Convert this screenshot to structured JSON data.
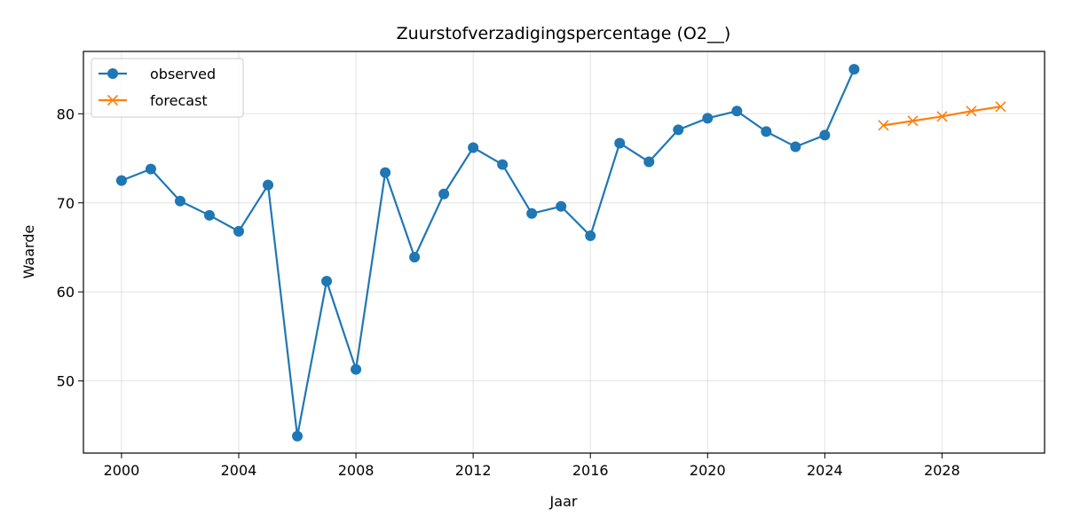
{
  "chart_data": {
    "type": "line",
    "title": "Zuurstofverzadigingspercentage (O2__)",
    "xlabel": "Jaar",
    "ylabel": "Waarde",
    "xlim": [
      1998.7,
      2031.5
    ],
    "ylim": [
      41.9,
      87.0
    ],
    "xticks": [
      2000,
      2004,
      2008,
      2012,
      2016,
      2020,
      2024,
      2028
    ],
    "yticks": [
      50,
      60,
      70,
      80
    ],
    "grid": true,
    "legend_position": "top-left",
    "series": [
      {
        "name": "observed",
        "color": "#1f77b4",
        "marker": "circle",
        "x": [
          2000,
          2001,
          2002,
          2003,
          2004,
          2005,
          2006,
          2007,
          2008,
          2009,
          2010,
          2011,
          2012,
          2013,
          2014,
          2015,
          2016,
          2017,
          2018,
          2019,
          2020,
          2021,
          2022,
          2023,
          2024,
          2025
        ],
        "values": [
          72.5,
          73.8,
          70.2,
          68.6,
          66.8,
          72.0,
          43.8,
          61.2,
          51.3,
          73.4,
          63.9,
          71.0,
          76.2,
          74.3,
          68.8,
          69.6,
          66.3,
          76.7,
          74.6,
          78.2,
          79.5,
          80.3,
          78.0,
          76.3,
          77.6,
          85.0
        ]
      },
      {
        "name": "forecast",
        "color": "#ff7f0e",
        "marker": "x",
        "x": [
          2026,
          2027,
          2028,
          2029,
          2030
        ],
        "values": [
          78.7,
          79.2,
          79.7,
          80.3,
          80.8
        ]
      }
    ]
  }
}
